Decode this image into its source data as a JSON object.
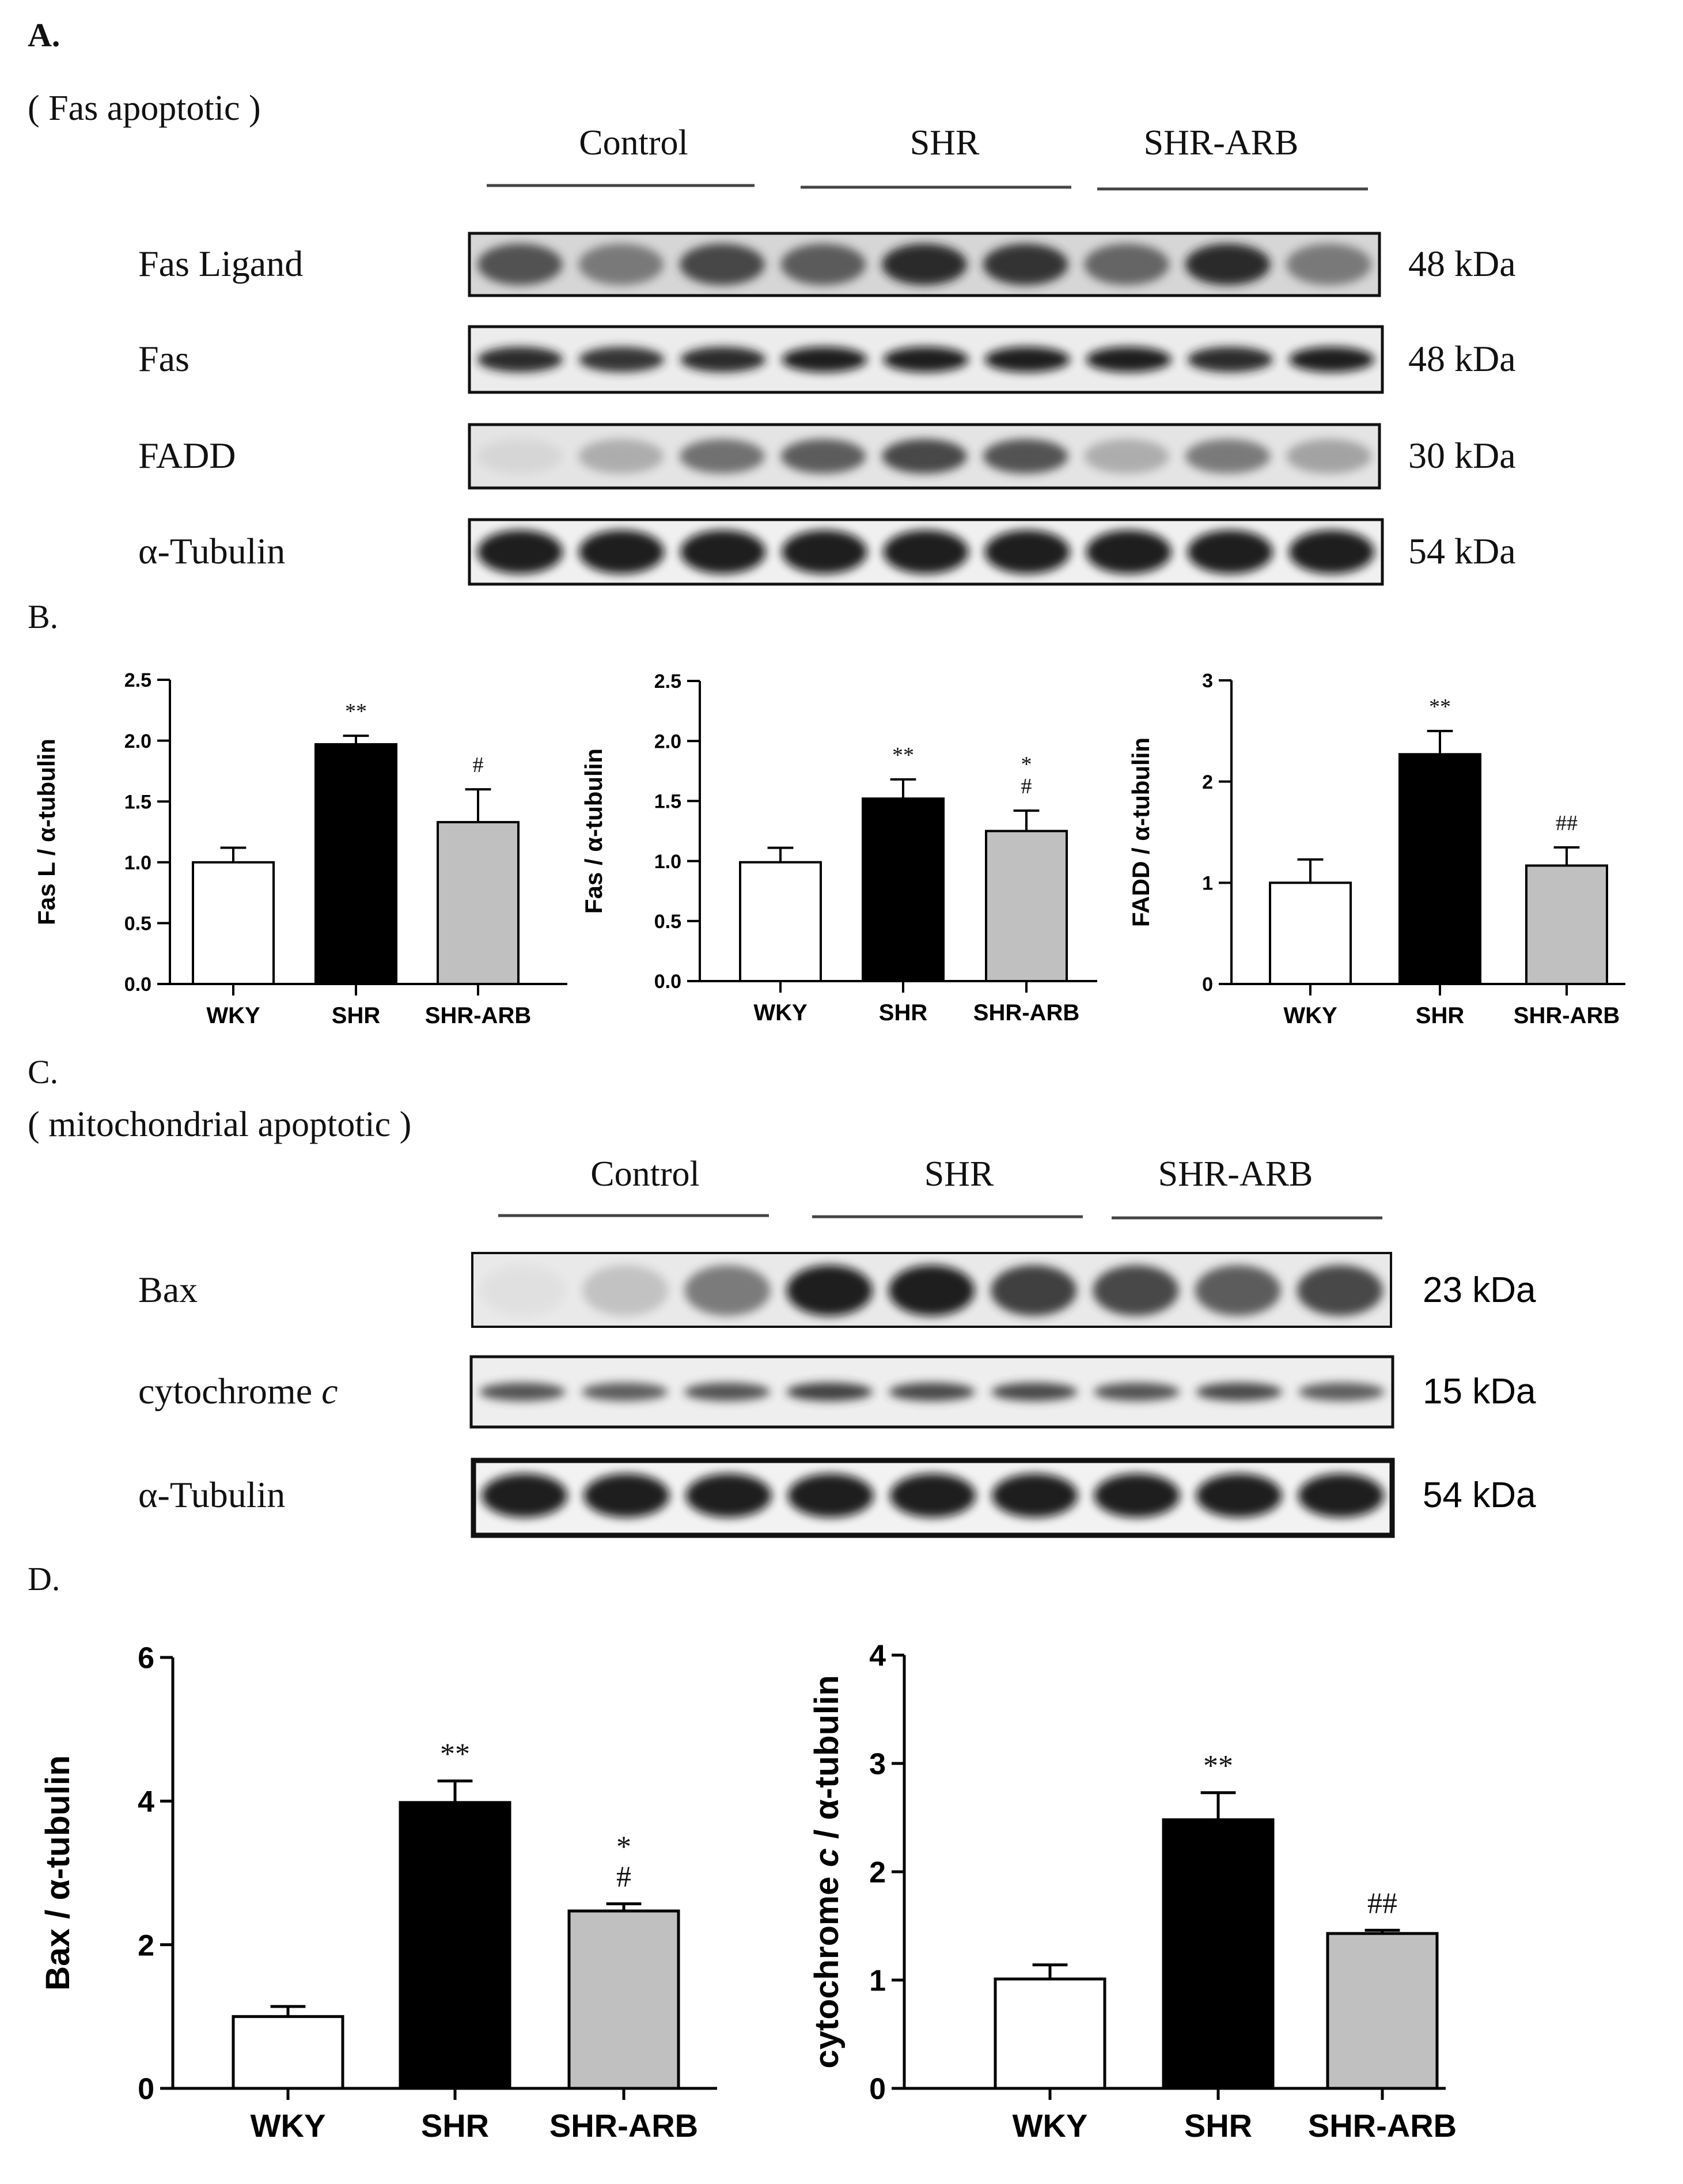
{
  "panel_labels": {
    "a": "A.",
    "b": "B.",
    "c": "C.",
    "d": "D."
  },
  "blot_a": {
    "subtitle": "( Fas apoptotic )",
    "groups": [
      "Control",
      "SHR",
      "SHR-ARB"
    ],
    "rows": [
      {
        "label": "Fas Ligand",
        "kda": "48 kDa",
        "intensity": [
          0.75,
          0.55,
          0.8,
          0.7,
          0.95,
          0.9,
          0.65,
          0.95,
          0.55
        ]
      },
      {
        "label": "Fas",
        "kda": "48 kDa",
        "intensity": [
          0.95,
          0.9,
          0.95,
          1.0,
          1.0,
          1.0,
          1.0,
          0.95,
          1.0
        ]
      },
      {
        "label": "FADD",
        "kda": "30 kDa",
        "intensity": [
          0.1,
          0.3,
          0.6,
          0.7,
          0.8,
          0.75,
          0.3,
          0.55,
          0.35
        ]
      },
      {
        "label": "α-Tubulin",
        "kda": "54 kDa",
        "intensity": [
          1.0,
          1.0,
          1.0,
          1.0,
          1.0,
          1.0,
          1.0,
          1.0,
          1.0
        ]
      }
    ]
  },
  "blot_c": {
    "subtitle": "( mitochondrial apoptotic )",
    "groups": [
      "Control",
      "SHR",
      "SHR-ARB"
    ],
    "rows": [
      {
        "label": "Bax",
        "kda": "23 kDa",
        "intensity": [
          0.05,
          0.2,
          0.55,
          1.0,
          1.0,
          0.85,
          0.8,
          0.7,
          0.8
        ]
      },
      {
        "label": "cytochrome c",
        "label_main": "cytochrome ",
        "label_italic": "c",
        "kda": "15 kDa",
        "intensity": [
          0.75,
          0.7,
          0.75,
          0.85,
          0.8,
          0.8,
          0.75,
          0.8,
          0.7
        ]
      },
      {
        "label": "α-Tubulin",
        "kda": "54 kDa",
        "intensity": [
          1.0,
          1.0,
          1.0,
          1.0,
          1.0,
          1.0,
          1.0,
          1.0,
          1.0
        ]
      }
    ]
  },
  "colors": {
    "WKY": "#ffffff",
    "SHR": "#000000",
    "SHR-ARB": "#c0c0c0",
    "axis": "#000000"
  },
  "chart_data": [
    {
      "type": "bar",
      "panel": "B",
      "categories": [
        "WKY",
        "SHR",
        "SHR-ARB"
      ],
      "values": [
        1.0,
        1.97,
        1.33
      ],
      "errors": [
        0.12,
        0.07,
        0.27
      ],
      "annotations": [
        [],
        [
          "**"
        ],
        [
          "#"
        ]
      ],
      "ylabel": "Fas L / α-tubulin",
      "ylim": [
        0,
        2.5
      ],
      "yticks": [
        0.0,
        0.5,
        1.0,
        1.5,
        2.0,
        2.5
      ],
      "ytick_labels": [
        "0.0",
        "0.5",
        "1.0",
        "1.5",
        "2.0",
        "2.5"
      ]
    },
    {
      "type": "bar",
      "panel": "B",
      "categories": [
        "WKY",
        "SHR",
        "SHR-ARB"
      ],
      "values": [
        0.99,
        1.52,
        1.25
      ],
      "errors": [
        0.12,
        0.16,
        0.17
      ],
      "annotations": [
        [],
        [
          "**"
        ],
        [
          "*",
          "#"
        ]
      ],
      "ylabel": "Fas / α-tubulin",
      "ylim": [
        0,
        2.5
      ],
      "yticks": [
        0.0,
        0.5,
        1.0,
        1.5,
        2.0,
        2.5
      ],
      "ytick_labels": [
        "0.0",
        "0.5",
        "1.0",
        "1.5",
        "2.0",
        "2.5"
      ]
    },
    {
      "type": "bar",
      "panel": "B",
      "categories": [
        "WKY",
        "SHR",
        "SHR-ARB"
      ],
      "values": [
        1.0,
        2.27,
        1.17
      ],
      "errors": [
        0.23,
        0.23,
        0.18
      ],
      "annotations": [
        [],
        [
          "**"
        ],
        [
          "##"
        ]
      ],
      "ylabel": "FADD / α-tubulin",
      "ylim": [
        0,
        3
      ],
      "yticks": [
        0,
        1,
        2,
        3
      ],
      "ytick_labels": [
        "0",
        "1",
        "2",
        "3"
      ]
    },
    {
      "type": "bar",
      "panel": "D",
      "categories": [
        "WKY",
        "SHR",
        "SHR-ARB"
      ],
      "values": [
        1.0,
        3.98,
        2.47
      ],
      "errors": [
        0.14,
        0.3,
        0.1
      ],
      "annotations": [
        [],
        [
          "**"
        ],
        [
          "*",
          "#"
        ]
      ],
      "ylabel": "Bax / α-tubulin",
      "ylim": [
        0,
        6
      ],
      "yticks": [
        0,
        2,
        4,
        6
      ],
      "ytick_labels": [
        "0",
        "2",
        "4",
        "6"
      ]
    },
    {
      "type": "bar",
      "panel": "D",
      "categories": [
        "WKY",
        "SHR",
        "SHR-ARB"
      ],
      "values": [
        1.01,
        2.48,
        1.43
      ],
      "errors": [
        0.13,
        0.25,
        0.03
      ],
      "annotations": [
        [],
        [
          "**"
        ],
        [
          "##"
        ]
      ],
      "ylabel": "cytochrome c / α-tubulin",
      "ylabel_parts": [
        "cytochrome ",
        "c",
        " / α-tubulin"
      ],
      "ylim": [
        0,
        4
      ],
      "yticks": [
        0,
        1,
        2,
        3,
        4
      ],
      "ytick_labels": [
        "0",
        "1",
        "2",
        "3",
        "4"
      ]
    }
  ]
}
